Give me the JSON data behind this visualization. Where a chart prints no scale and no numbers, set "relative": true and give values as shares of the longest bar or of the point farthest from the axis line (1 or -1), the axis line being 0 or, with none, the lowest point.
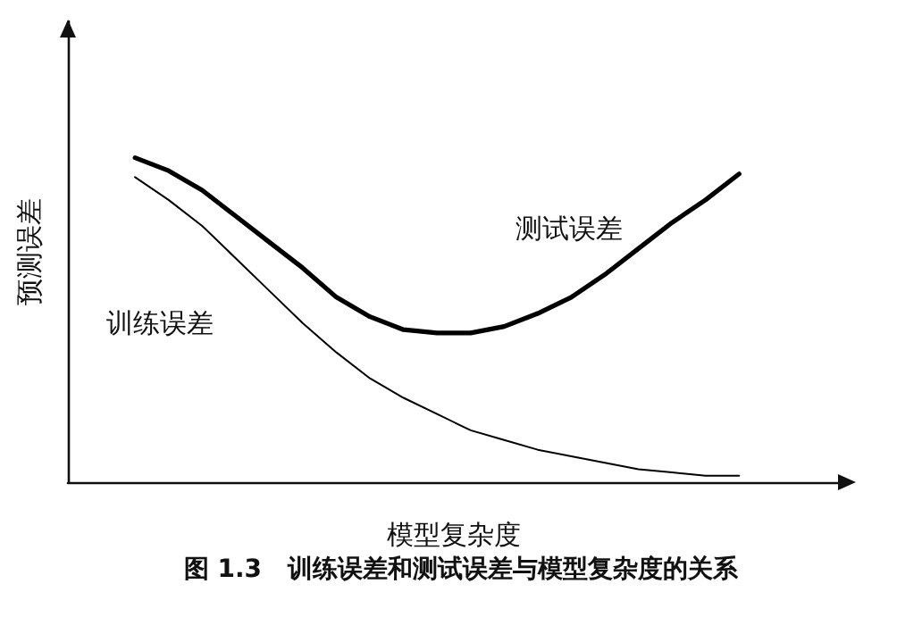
{
  "chart_data": {
    "type": "line",
    "relative": true,
    "xlabel": "模型复杂度",
    "ylabel": "预测误差",
    "annotations": [
      "图 1.3   训练误差和测试误差与模型复杂度的关系"
    ],
    "categories": [
      null,
      null,
      null,
      null,
      null,
      null,
      null,
      null,
      null,
      null,
      null,
      null,
      null,
      null,
      null,
      null,
      null,
      null,
      null,
      null,
      null,
      null,
      null,
      null
    ],
    "series": [
      {
        "name": "测试误差",
        "color": "#000000",
        "values": [
          null,
          null,
          1,
          0.96,
          0.9,
          0.82,
          0.74,
          0.66,
          0.57,
          0.51,
          0.47,
          0.46,
          0.46,
          0.48,
          0.52,
          0.57,
          0.64,
          0.72,
          0.8,
          0.87,
          0.95,
          null,
          null,
          null
        ]
      },
      {
        "name": "训练误差",
        "color": "#000000",
        "values": [
          null,
          null,
          0.94,
          0.87,
          0.79,
          0.69,
          0.59,
          0.49,
          0.4,
          0.32,
          0.26,
          0.21,
          0.16,
          0.13,
          0.1,
          0.08,
          0.06,
          0.04,
          0.03,
          0.02,
          0.02,
          null,
          null,
          null
        ]
      }
    ],
    "grid": false,
    "legend": false,
    "marker": "none",
    "line_style": "solid"
  }
}
